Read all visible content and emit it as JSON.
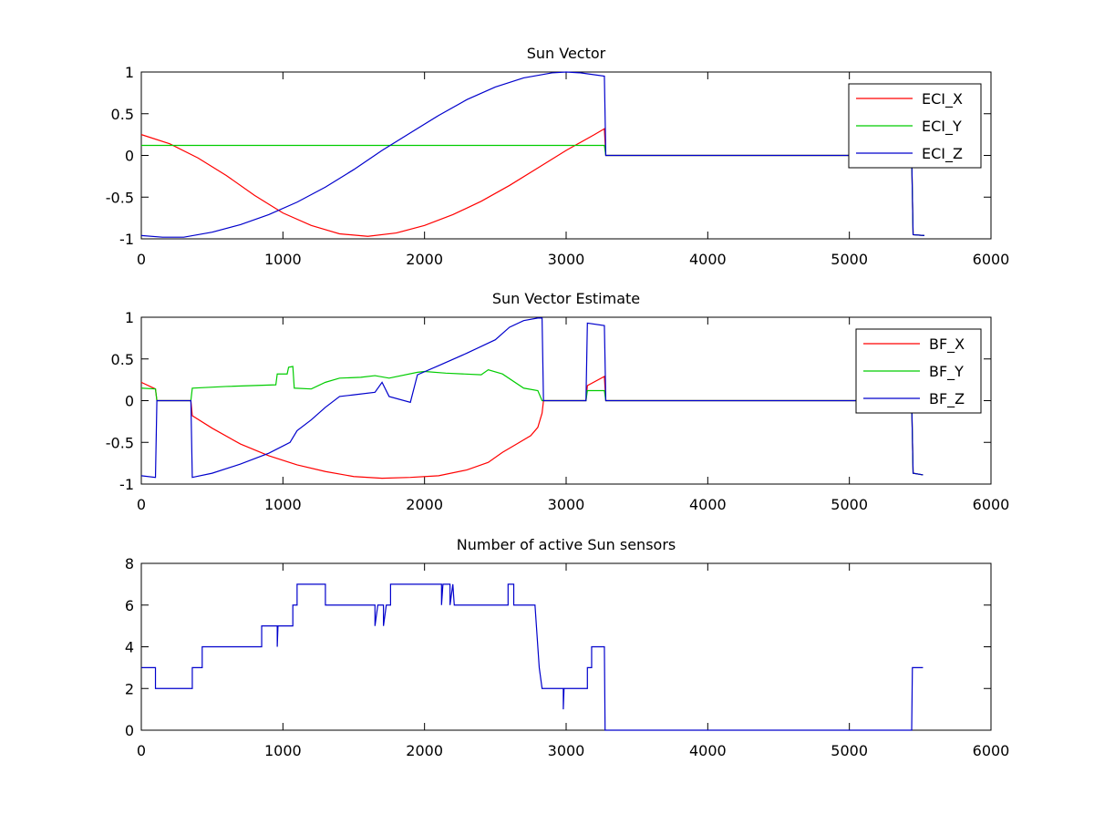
{
  "chart_data": [
    {
      "type": "line",
      "title": "Sun Vector",
      "xlim": [
        0,
        6000
      ],
      "ylim": [
        -1,
        1
      ],
      "xticks": [
        0,
        1000,
        2000,
        3000,
        4000,
        5000,
        6000
      ],
      "yticks": [
        -1,
        -0.5,
        0,
        0.5,
        1
      ],
      "legend_position": "top-right",
      "series": [
        {
          "name": "ECI_X",
          "color": "#ff0000",
          "points": [
            [
              0,
              0.25
            ],
            [
              200,
              0.14
            ],
            [
              400,
              -0.03
            ],
            [
              600,
              -0.24
            ],
            [
              800,
              -0.48
            ],
            [
              1000,
              -0.69
            ],
            [
              1200,
              -0.84
            ],
            [
              1400,
              -0.94
            ],
            [
              1600,
              -0.97
            ],
            [
              1800,
              -0.93
            ],
            [
              2000,
              -0.84
            ],
            [
              2200,
              -0.71
            ],
            [
              2400,
              -0.55
            ],
            [
              2600,
              -0.36
            ],
            [
              2800,
              -0.15
            ],
            [
              3000,
              0.06
            ],
            [
              3200,
              0.25
            ],
            [
              3270,
              0.32
            ],
            [
              3280,
              0
            ],
            [
              5000,
              0
            ],
            [
              5440,
              0
            ],
            [
              5450,
              -0.95
            ],
            [
              5530,
              -0.96
            ]
          ]
        },
        {
          "name": "ECI_Y",
          "color": "#00cc00",
          "points": [
            [
              0,
              0.12
            ],
            [
              3270,
              0.12
            ],
            [
              3280,
              0
            ],
            [
              5440,
              0
            ],
            [
              5450,
              -0.95
            ],
            [
              5530,
              -0.96
            ]
          ]
        },
        {
          "name": "ECI_Z",
          "color": "#0000cc",
          "points": [
            [
              0,
              -0.96
            ],
            [
              150,
              -0.98
            ],
            [
              300,
              -0.98
            ],
            [
              500,
              -0.92
            ],
            [
              700,
              -0.83
            ],
            [
              900,
              -0.71
            ],
            [
              1100,
              -0.56
            ],
            [
              1300,
              -0.38
            ],
            [
              1500,
              -0.17
            ],
            [
              1700,
              0.06
            ],
            [
              1900,
              0.27
            ],
            [
              2100,
              0.48
            ],
            [
              2300,
              0.67
            ],
            [
              2500,
              0.82
            ],
            [
              2700,
              0.93
            ],
            [
              2900,
              0.99
            ],
            [
              3000,
              1.0
            ],
            [
              3100,
              0.99
            ],
            [
              3270,
              0.95
            ],
            [
              3280,
              0
            ],
            [
              5000,
              0
            ],
            [
              5440,
              0
            ],
            [
              5450,
              -0.95
            ],
            [
              5530,
              -0.96
            ]
          ]
        }
      ]
    },
    {
      "type": "line",
      "title": "Sun Vector Estimate",
      "xlim": [
        0,
        6000
      ],
      "ylim": [
        -1,
        1
      ],
      "xticks": [
        0,
        1000,
        2000,
        3000,
        4000,
        5000,
        6000
      ],
      "yticks": [
        -1,
        -0.5,
        0,
        0.5,
        1
      ],
      "legend_position": "top-right",
      "series": [
        {
          "name": "BF_X",
          "color": "#ff0000",
          "points": [
            [
              0,
              0.22
            ],
            [
              100,
              0.14
            ],
            [
              110,
              0
            ],
            [
              350,
              0
            ],
            [
              360,
              -0.18
            ],
            [
              500,
              -0.33
            ],
            [
              700,
              -0.52
            ],
            [
              900,
              -0.66
            ],
            [
              1100,
              -0.77
            ],
            [
              1300,
              -0.85
            ],
            [
              1500,
              -0.91
            ],
            [
              1700,
              -0.93
            ],
            [
              1900,
              -0.92
            ],
            [
              2100,
              -0.9
            ],
            [
              2300,
              -0.83
            ],
            [
              2450,
              -0.74
            ],
            [
              2550,
              -0.62
            ],
            [
              2650,
              -0.52
            ],
            [
              2750,
              -0.42
            ],
            [
              2800,
              -0.32
            ],
            [
              2830,
              -0.15
            ],
            [
              2840,
              0
            ],
            [
              3140,
              0
            ],
            [
              3150,
              0.18
            ],
            [
              3270,
              0.29
            ],
            [
              3280,
              0
            ],
            [
              5440,
              0
            ],
            [
              5450,
              -0.87
            ],
            [
              5520,
              -0.89
            ]
          ]
        },
        {
          "name": "BF_Y",
          "color": "#00cc00",
          "points": [
            [
              0,
              0.15
            ],
            [
              100,
              0.14
            ],
            [
              110,
              0
            ],
            [
              350,
              0
            ],
            [
              360,
              0.15
            ],
            [
              600,
              0.17
            ],
            [
              950,
              0.19
            ],
            [
              960,
              0.32
            ],
            [
              1030,
              0.32
            ],
            [
              1040,
              0.4
            ],
            [
              1070,
              0.41
            ],
            [
              1080,
              0.15
            ],
            [
              1200,
              0.14
            ],
            [
              1300,
              0.22
            ],
            [
              1400,
              0.27
            ],
            [
              1550,
              0.28
            ],
            [
              1650,
              0.3
            ],
            [
              1750,
              0.27
            ],
            [
              1950,
              0.34
            ],
            [
              2000,
              0.35
            ],
            [
              2150,
              0.33
            ],
            [
              2400,
              0.31
            ],
            [
              2450,
              0.37
            ],
            [
              2550,
              0.32
            ],
            [
              2700,
              0.15
            ],
            [
              2800,
              0.12
            ],
            [
              2830,
              0.0
            ],
            [
              3140,
              0
            ],
            [
              3150,
              0.12
            ],
            [
              3270,
              0.12
            ],
            [
              3280,
              0
            ],
            [
              5440,
              0
            ],
            [
              5450,
              -0.87
            ],
            [
              5520,
              -0.89
            ]
          ]
        },
        {
          "name": "BF_Z",
          "color": "#0000cc",
          "points": [
            [
              0,
              -0.9
            ],
            [
              100,
              -0.92
            ],
            [
              110,
              0
            ],
            [
              350,
              0
            ],
            [
              360,
              -0.92
            ],
            [
              500,
              -0.87
            ],
            [
              700,
              -0.76
            ],
            [
              900,
              -0.63
            ],
            [
              1050,
              -0.5
            ],
            [
              1100,
              -0.36
            ],
            [
              1200,
              -0.23
            ],
            [
              1300,
              -0.08
            ],
            [
              1400,
              0.05
            ],
            [
              1500,
              0.07
            ],
            [
              1650,
              0.1
            ],
            [
              1700,
              0.22
            ],
            [
              1750,
              0.05
            ],
            [
              1900,
              -0.02
            ],
            [
              1950,
              0.31
            ],
            [
              2100,
              0.42
            ],
            [
              2300,
              0.57
            ],
            [
              2500,
              0.73
            ],
            [
              2600,
              0.88
            ],
            [
              2700,
              0.96
            ],
            [
              2800,
              0.99
            ],
            [
              2830,
              0.99
            ],
            [
              2840,
              0
            ],
            [
              3140,
              0
            ],
            [
              3150,
              0.93
            ],
            [
              3270,
              0.9
            ],
            [
              3280,
              0
            ],
            [
              5440,
              0
            ],
            [
              5450,
              -0.87
            ],
            [
              5520,
              -0.89
            ]
          ]
        }
      ]
    },
    {
      "type": "line",
      "title": "Number of active Sun sensors",
      "xlim": [
        0,
        6000
      ],
      "ylim": [
        0,
        8
      ],
      "xticks": [
        0,
        1000,
        2000,
        3000,
        4000,
        5000,
        6000
      ],
      "yticks": [
        0,
        2,
        4,
        6,
        8
      ],
      "series": [
        {
          "name": "",
          "color": "#0000cc",
          "points": [
            [
              0,
              3
            ],
            [
              100,
              3
            ],
            [
              100,
              2
            ],
            [
              360,
              2
            ],
            [
              360,
              3
            ],
            [
              430,
              3
            ],
            [
              430,
              4
            ],
            [
              850,
              4
            ],
            [
              850,
              5
            ],
            [
              960,
              5
            ],
            [
              960,
              4
            ],
            [
              965,
              5
            ],
            [
              1070,
              5
            ],
            [
              1070,
              6
            ],
            [
              1100,
              6
            ],
            [
              1100,
              7
            ],
            [
              1300,
              7
            ],
            [
              1300,
              6
            ],
            [
              1650,
              6
            ],
            [
              1650,
              5
            ],
            [
              1670,
              6
            ],
            [
              1710,
              6
            ],
            [
              1710,
              5
            ],
            [
              1730,
              6
            ],
            [
              1760,
              6
            ],
            [
              1760,
              7
            ],
            [
              2120,
              7
            ],
            [
              2120,
              6
            ],
            [
              2130,
              7
            ],
            [
              2180,
              7
            ],
            [
              2180,
              6
            ],
            [
              2200,
              7
            ],
            [
              2210,
              6
            ],
            [
              2590,
              6
            ],
            [
              2590,
              7
            ],
            [
              2630,
              7
            ],
            [
              2630,
              6
            ],
            [
              2780,
              6
            ],
            [
              2790,
              5
            ],
            [
              2800,
              4
            ],
            [
              2810,
              3
            ],
            [
              2830,
              2
            ],
            [
              2980,
              2
            ],
            [
              2980,
              1
            ],
            [
              2985,
              2
            ],
            [
              3150,
              2
            ],
            [
              3150,
              3
            ],
            [
              3180,
              3
            ],
            [
              3180,
              4
            ],
            [
              3270,
              4
            ],
            [
              3275,
              0
            ],
            [
              5440,
              0
            ],
            [
              5445,
              3
            ],
            [
              5520,
              3
            ]
          ]
        }
      ]
    }
  ]
}
